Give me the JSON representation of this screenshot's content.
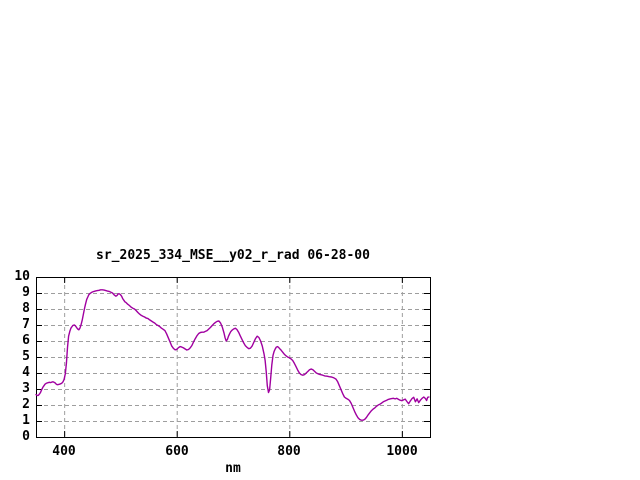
{
  "chart_data": {
    "type": "line",
    "title": "sr_2025_334_MSE__y02_r_rad 06-28-00",
    "xlabel": "nm",
    "ylabel": "",
    "xlim": [
      350,
      1050
    ],
    "ylim": [
      0,
      10
    ],
    "x_tick_values": [
      400,
      600,
      800,
      1000
    ],
    "y_tick_values": [
      0,
      1,
      2,
      3,
      4,
      5,
      6,
      7,
      8,
      9,
      10
    ],
    "grid": true,
    "legend": false,
    "colors": {
      "line": "#a000a0",
      "grid": "#9e9e9e",
      "axis": "#000000",
      "background": "#ffffff"
    },
    "series": [
      {
        "name": "sr_2025_334_MSE__y02_r_rad",
        "color": "#a000a0",
        "points": [
          [
            350,
            2.65
          ],
          [
            352,
            2.6
          ],
          [
            354,
            2.6
          ],
          [
            356,
            2.68
          ],
          [
            358,
            2.78
          ],
          [
            360,
            2.95
          ],
          [
            362,
            3.1
          ],
          [
            364,
            3.2
          ],
          [
            366,
            3.3
          ],
          [
            368,
            3.35
          ],
          [
            370,
            3.38
          ],
          [
            372,
            3.4
          ],
          [
            374,
            3.42
          ],
          [
            376,
            3.4
          ],
          [
            378,
            3.43
          ],
          [
            380,
            3.45
          ],
          [
            382,
            3.42
          ],
          [
            384,
            3.38
          ],
          [
            386,
            3.3
          ],
          [
            388,
            3.27
          ],
          [
            390,
            3.28
          ],
          [
            392,
            3.3
          ],
          [
            394,
            3.33
          ],
          [
            396,
            3.37
          ],
          [
            398,
            3.45
          ],
          [
            400,
            3.6
          ],
          [
            402,
            3.95
          ],
          [
            404,
            4.6
          ],
          [
            406,
            5.6
          ],
          [
            408,
            6.3
          ],
          [
            410,
            6.6
          ],
          [
            412,
            6.8
          ],
          [
            414,
            6.9
          ],
          [
            416,
            6.98
          ],
          [
            418,
            7.0
          ],
          [
            420,
            6.95
          ],
          [
            422,
            6.85
          ],
          [
            424,
            6.75
          ],
          [
            426,
            6.7
          ],
          [
            428,
            6.8
          ],
          [
            430,
            7.0
          ],
          [
            432,
            7.3
          ],
          [
            434,
            7.65
          ],
          [
            436,
            8.0
          ],
          [
            438,
            8.3
          ],
          [
            440,
            8.6
          ],
          [
            442,
            8.75
          ],
          [
            444,
            8.9
          ],
          [
            446,
            8.97
          ],
          [
            448,
            9.02
          ],
          [
            450,
            9.06
          ],
          [
            453,
            9.1
          ],
          [
            456,
            9.13
          ],
          [
            459,
            9.15
          ],
          [
            462,
            9.17
          ],
          [
            465,
            9.2
          ],
          [
            468,
            9.2
          ],
          [
            471,
            9.18
          ],
          [
            474,
            9.15
          ],
          [
            477,
            9.12
          ],
          [
            480,
            9.1
          ],
          [
            483,
            9.05
          ],
          [
            486,
            9.0
          ],
          [
            489,
            8.88
          ],
          [
            492,
            8.8
          ],
          [
            494,
            8.85
          ],
          [
            496,
            8.95
          ],
          [
            498,
            8.95
          ],
          [
            500,
            8.9
          ],
          [
            502,
            8.8
          ],
          [
            504,
            8.65
          ],
          [
            506,
            8.55
          ],
          [
            508,
            8.45
          ],
          [
            510,
            8.4
          ],
          [
            513,
            8.3
          ],
          [
            516,
            8.22
          ],
          [
            519,
            8.12
          ],
          [
            522,
            8.05
          ],
          [
            525,
            8.0
          ],
          [
            528,
            7.9
          ],
          [
            531,
            7.78
          ],
          [
            534,
            7.68
          ],
          [
            537,
            7.6
          ],
          [
            540,
            7.55
          ],
          [
            543,
            7.5
          ],
          [
            546,
            7.43
          ],
          [
            549,
            7.4
          ],
          [
            552,
            7.32
          ],
          [
            555,
            7.25
          ],
          [
            558,
            7.18
          ],
          [
            561,
            7.12
          ],
          [
            564,
            7.02
          ],
          [
            567,
            6.97
          ],
          [
            570,
            6.9
          ],
          [
            573,
            6.8
          ],
          [
            576,
            6.73
          ],
          [
            579,
            6.65
          ],
          [
            582,
            6.45
          ],
          [
            585,
            6.2
          ],
          [
            588,
            5.95
          ],
          [
            591,
            5.7
          ],
          [
            594,
            5.55
          ],
          [
            597,
            5.45
          ],
          [
            600,
            5.47
          ],
          [
            603,
            5.58
          ],
          [
            606,
            5.65
          ],
          [
            609,
            5.62
          ],
          [
            612,
            5.57
          ],
          [
            615,
            5.5
          ],
          [
            618,
            5.44
          ],
          [
            621,
            5.47
          ],
          [
            624,
            5.57
          ],
          [
            627,
            5.72
          ],
          [
            630,
            5.95
          ],
          [
            633,
            6.15
          ],
          [
            636,
            6.33
          ],
          [
            639,
            6.47
          ],
          [
            642,
            6.53
          ],
          [
            645,
            6.55
          ],
          [
            648,
            6.55
          ],
          [
            651,
            6.6
          ],
          [
            654,
            6.65
          ],
          [
            657,
            6.75
          ],
          [
            660,
            6.85
          ],
          [
            663,
            6.97
          ],
          [
            666,
            7.08
          ],
          [
            669,
            7.17
          ],
          [
            672,
            7.23
          ],
          [
            675,
            7.25
          ],
          [
            678,
            7.12
          ],
          [
            681,
            6.87
          ],
          [
            684,
            6.5
          ],
          [
            686,
            6.2
          ],
          [
            688,
            6.0
          ],
          [
            690,
            6.1
          ],
          [
            692,
            6.3
          ],
          [
            694,
            6.45
          ],
          [
            696,
            6.58
          ],
          [
            698,
            6.67
          ],
          [
            701,
            6.75
          ],
          [
            704,
            6.8
          ],
          [
            707,
            6.72
          ],
          [
            710,
            6.55
          ],
          [
            713,
            6.32
          ],
          [
            716,
            6.1
          ],
          [
            719,
            5.88
          ],
          [
            722,
            5.7
          ],
          [
            725,
            5.6
          ],
          [
            728,
            5.52
          ],
          [
            731,
            5.55
          ],
          [
            734,
            5.68
          ],
          [
            737,
            5.92
          ],
          [
            740,
            6.15
          ],
          [
            743,
            6.3
          ],
          [
            746,
            6.22
          ],
          [
            749,
            6.0
          ],
          [
            752,
            5.68
          ],
          [
            755,
            5.2
          ],
          [
            757,
            4.8
          ],
          [
            759,
            4.1
          ],
          [
            761,
            3.2
          ],
          [
            763,
            2.78
          ],
          [
            765,
            2.95
          ],
          [
            767,
            3.7
          ],
          [
            769,
            4.5
          ],
          [
            771,
            5.1
          ],
          [
            773,
            5.35
          ],
          [
            775,
            5.5
          ],
          [
            777,
            5.62
          ],
          [
            779,
            5.65
          ],
          [
            781,
            5.6
          ],
          [
            783,
            5.52
          ],
          [
            785,
            5.45
          ],
          [
            788,
            5.32
          ],
          [
            791,
            5.18
          ],
          [
            794,
            5.08
          ],
          [
            797,
            5.0
          ],
          [
            800,
            4.95
          ],
          [
            803,
            4.88
          ],
          [
            806,
            4.78
          ],
          [
            809,
            4.6
          ],
          [
            812,
            4.4
          ],
          [
            815,
            4.18
          ],
          [
            818,
            4.0
          ],
          [
            821,
            3.9
          ],
          [
            824,
            3.86
          ],
          [
            827,
            3.9
          ],
          [
            830,
            4.0
          ],
          [
            833,
            4.1
          ],
          [
            836,
            4.2
          ],
          [
            839,
            4.25
          ],
          [
            842,
            4.2
          ],
          [
            845,
            4.1
          ],
          [
            848,
            4.0
          ],
          [
            851,
            3.95
          ],
          [
            855,
            3.9
          ],
          [
            859,
            3.87
          ],
          [
            863,
            3.82
          ],
          [
            867,
            3.8
          ],
          [
            871,
            3.77
          ],
          [
            875,
            3.75
          ],
          [
            879,
            3.7
          ],
          [
            883,
            3.62
          ],
          [
            886,
            3.45
          ],
          [
            889,
            3.2
          ],
          [
            892,
            2.95
          ],
          [
            895,
            2.7
          ],
          [
            898,
            2.5
          ],
          [
            901,
            2.42
          ],
          [
            904,
            2.36
          ],
          [
            907,
            2.28
          ],
          [
            910,
            2.1
          ],
          [
            913,
            1.85
          ],
          [
            916,
            1.6
          ],
          [
            919,
            1.38
          ],
          [
            922,
            1.2
          ],
          [
            925,
            1.1
          ],
          [
            928,
            1.05
          ],
          [
            931,
            1.05
          ],
          [
            934,
            1.1
          ],
          [
            937,
            1.22
          ],
          [
            940,
            1.38
          ],
          [
            943,
            1.52
          ],
          [
            946,
            1.65
          ],
          [
            949,
            1.75
          ],
          [
            952,
            1.82
          ],
          [
            955,
            1.92
          ],
          [
            958,
            2.0
          ],
          [
            961,
            2.05
          ],
          [
            964,
            2.12
          ],
          [
            967,
            2.2
          ],
          [
            970,
            2.25
          ],
          [
            973,
            2.3
          ],
          [
            976,
            2.35
          ],
          [
            979,
            2.38
          ],
          [
            982,
            2.4
          ],
          [
            985,
            2.42
          ],
          [
            988,
            2.38
          ],
          [
            991,
            2.42
          ],
          [
            994,
            2.35
          ],
          [
            997,
            2.3
          ],
          [
            1000,
            2.27
          ],
          [
            1003,
            2.32
          ],
          [
            1006,
            2.37
          ],
          [
            1009,
            2.22
          ],
          [
            1012,
            2.08
          ],
          [
            1015,
            2.25
          ],
          [
            1018,
            2.4
          ],
          [
            1021,
            2.48
          ],
          [
            1024,
            2.2
          ],
          [
            1027,
            2.38
          ],
          [
            1030,
            2.15
          ],
          [
            1033,
            2.3
          ],
          [
            1036,
            2.42
          ],
          [
            1039,
            2.5
          ],
          [
            1042,
            2.4
          ],
          [
            1044,
            2.28
          ],
          [
            1046,
            2.48
          ],
          [
            1048,
            2.5
          ]
        ]
      }
    ]
  }
}
